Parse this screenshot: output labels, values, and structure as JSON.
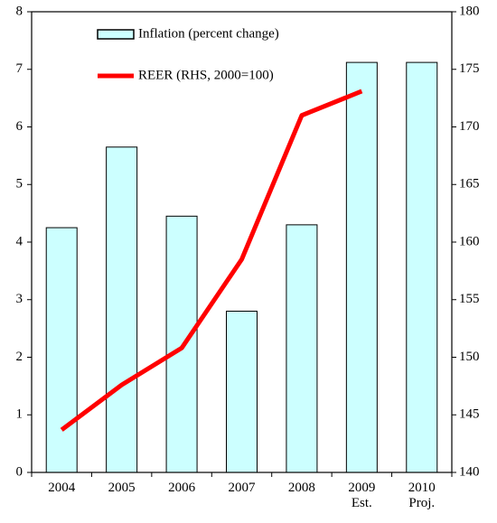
{
  "chart_data": {
    "type": "bar_line",
    "categories": [
      "2004",
      "2005",
      "2006",
      "2007",
      "2008",
      "2009\nEst.",
      "2010\nProj."
    ],
    "series": [
      {
        "name": "Inflation (percent change)",
        "type": "bar",
        "color": "#ccffff",
        "values": [
          4.25,
          5.65,
          4.45,
          2.8,
          4.3,
          7.12,
          7.12
        ]
      },
      {
        "name": "REER (RHS, 2000=100)",
        "type": "line",
        "axis": "y2",
        "color": "#ff0000",
        "values": [
          143.7,
          147.6,
          150.8,
          158.5,
          171.0,
          173.1,
          null
        ]
      }
    ],
    "ylim": [
      0,
      8
    ],
    "yticks": [
      0,
      1,
      2,
      3,
      4,
      5,
      6,
      7,
      8
    ],
    "y2lim": [
      140,
      180
    ],
    "y2ticks": [
      140,
      145,
      150,
      155,
      160,
      165,
      170,
      175,
      180
    ],
    "grid": false,
    "legend": "upper left"
  }
}
